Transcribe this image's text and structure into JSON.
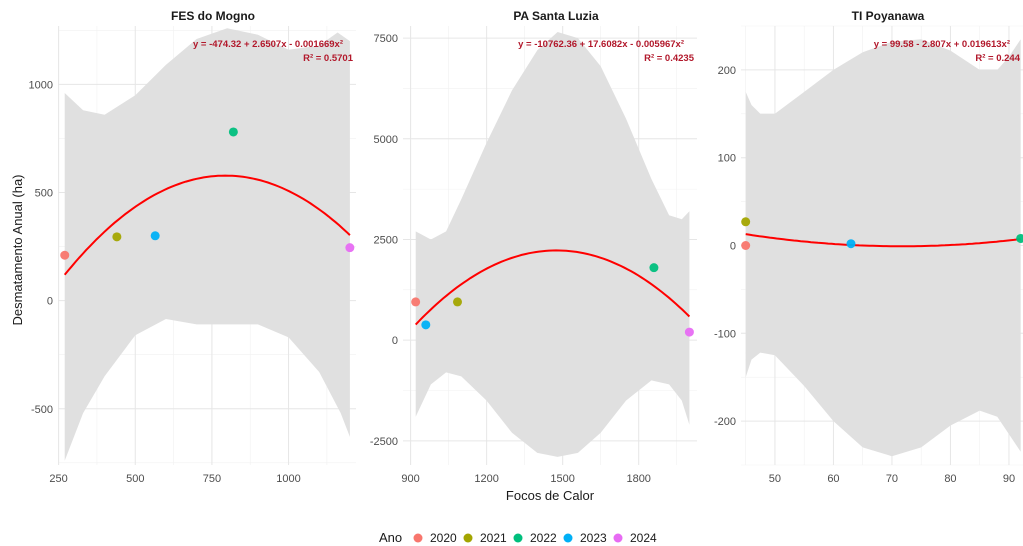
{
  "chart_data": {
    "type": "scatter",
    "xlabel": "Focos de Calor",
    "ylabel": "Desmatamento Anual (ha)",
    "legend": {
      "title": "Ano",
      "position": "bottom",
      "items": [
        {
          "label": "2020",
          "color": "#F8766D"
        },
        {
          "label": "2021",
          "color": "#A3A500"
        },
        {
          "label": "2022",
          "color": "#00BF7D"
        },
        {
          "label": "2023",
          "color": "#00B0F6"
        },
        {
          "label": "2024",
          "color": "#E76BF3"
        }
      ]
    },
    "fit_color": "#ff0000",
    "band_color": "#e0e0e0",
    "grid": true,
    "panels": [
      {
        "title": "FES do Mogno",
        "equation": "y = -474.32 + 2.6507x - 0.001669x²",
        "r2": "R² = 0.5701",
        "coef": [
          -474.32,
          2.6507,
          -0.001669
        ],
        "xlim": [
          248,
          1220
        ],
        "ylim": [
          -760,
          1270
        ],
        "xticks": [
          250,
          500,
          750,
          1000
        ],
        "xtick_labels": [
          "250",
          "500",
          "750",
          "1000"
        ],
        "yticks": [
          -500,
          0,
          500,
          1000
        ],
        "ytick_labels": [
          "-500",
          "0",
          "500",
          "1000"
        ],
        "points": [
          {
            "x": 270,
            "y": 210,
            "year": "2020"
          },
          {
            "x": 440,
            "y": 295,
            "year": "2021"
          },
          {
            "x": 820,
            "y": 780,
            "year": "2022"
          },
          {
            "x": 565,
            "y": 300,
            "year": "2023"
          },
          {
            "x": 1200,
            "y": 245,
            "year": "2024"
          }
        ],
        "band_upper": [
          [
            270,
            960
          ],
          [
            330,
            880
          ],
          [
            400,
            860
          ],
          [
            500,
            950
          ],
          [
            600,
            1090
          ],
          [
            700,
            1210
          ],
          [
            800,
            1260
          ],
          [
            900,
            1230
          ],
          [
            1000,
            1160
          ],
          [
            1100,
            1180
          ],
          [
            1160,
            1240
          ],
          [
            1200,
            1200
          ]
        ],
        "band_lower": [
          [
            270,
            -740
          ],
          [
            330,
            -520
          ],
          [
            400,
            -350
          ],
          [
            500,
            -160
          ],
          [
            600,
            -85
          ],
          [
            700,
            -110
          ],
          [
            800,
            -110
          ],
          [
            900,
            -110
          ],
          [
            1000,
            -170
          ],
          [
            1100,
            -330
          ],
          [
            1170,
            -520
          ],
          [
            1200,
            -630
          ]
        ]
      },
      {
        "title": "PA Santa Luzia",
        "equation": "y = -10762.36 + 17.6082x - 0.005967x²",
        "r2": "R² = 0.4235",
        "coef": [
          -10762.36,
          17.6082,
          -0.005967
        ],
        "xlim": [
          870,
          2030
        ],
        "ylim": [
          -3100,
          7800
        ],
        "xticks": [
          900,
          1200,
          1500,
          1800
        ],
        "xtick_labels": [
          "900",
          "1200",
          "1500",
          "1800"
        ],
        "yticks": [
          -2500,
          0,
          2500,
          5000,
          7500
        ],
        "ytick_labels": [
          "-2500",
          "0",
          "2500",
          "5000",
          "7500"
        ],
        "points": [
          {
            "x": 920,
            "y": 950,
            "year": "2020"
          },
          {
            "x": 1085,
            "y": 950,
            "year": "2021"
          },
          {
            "x": 1860,
            "y": 1800,
            "year": "2022"
          },
          {
            "x": 960,
            "y": 380,
            "year": "2023"
          },
          {
            "x": 2000,
            "y": 200,
            "year": "2024"
          }
        ],
        "band_upper": [
          [
            920,
            2700
          ],
          [
            980,
            2500
          ],
          [
            1040,
            2700
          ],
          [
            1100,
            3500
          ],
          [
            1200,
            4900
          ],
          [
            1300,
            6200
          ],
          [
            1400,
            7200
          ],
          [
            1480,
            7650
          ],
          [
            1560,
            7500
          ],
          [
            1650,
            6800
          ],
          [
            1750,
            5500
          ],
          [
            1850,
            4000
          ],
          [
            1920,
            3100
          ],
          [
            1970,
            3000
          ],
          [
            2000,
            3200
          ]
        ],
        "band_lower": [
          [
            920,
            -1900
          ],
          [
            980,
            -1100
          ],
          [
            1040,
            -800
          ],
          [
            1100,
            -900
          ],
          [
            1200,
            -1500
          ],
          [
            1300,
            -2300
          ],
          [
            1400,
            -2800
          ],
          [
            1480,
            -2900
          ],
          [
            1560,
            -2800
          ],
          [
            1650,
            -2300
          ],
          [
            1750,
            -1500
          ],
          [
            1850,
            -1000
          ],
          [
            1920,
            -1100
          ],
          [
            1970,
            -1500
          ],
          [
            2000,
            -2100
          ]
        ]
      },
      {
        "title": "TI Poyanawa",
        "equation": "y = 99.58 - 2.807x + 0.019613x²",
        "r2": "R² = 0.244",
        "coef": [
          99.58,
          -2.807,
          0.019613
        ],
        "xlim": [
          44.2,
          92.4
        ],
        "ylim": [
          -250,
          250
        ],
        "xticks": [
          50,
          60,
          70,
          80,
          90
        ],
        "xtick_labels": [
          "50",
          "60",
          "70",
          "80",
          "90"
        ],
        "yticks": [
          -200,
          -100,
          0,
          100,
          200
        ],
        "ytick_labels": [
          "-200",
          "-100",
          "0",
          "100",
          "200"
        ],
        "points": [
          {
            "x": 45,
            "y": 0,
            "year": "2020"
          },
          {
            "x": 45,
            "y": 27,
            "year": "2021"
          },
          {
            "x": 92,
            "y": 8,
            "year": "2022"
          },
          {
            "x": 63,
            "y": 2,
            "year": "2023"
          }
        ],
        "band_upper": [
          [
            45,
            175
          ],
          [
            46,
            160
          ],
          [
            47.5,
            150
          ],
          [
            50,
            150
          ],
          [
            55,
            175
          ],
          [
            60,
            200
          ],
          [
            65,
            220
          ],
          [
            70,
            232
          ],
          [
            75,
            235
          ],
          [
            80,
            222
          ],
          [
            85,
            200
          ],
          [
            88,
            200
          ],
          [
            90,
            215
          ],
          [
            92,
            235
          ]
        ],
        "band_lower": [
          [
            45,
            -150
          ],
          [
            46,
            -130
          ],
          [
            47.5,
            -122
          ],
          [
            50,
            -125
          ],
          [
            55,
            -160
          ],
          [
            60,
            -200
          ],
          [
            65,
            -230
          ],
          [
            70,
            -240
          ],
          [
            75,
            -230
          ],
          [
            80,
            -205
          ],
          [
            85,
            -188
          ],
          [
            88,
            -195
          ],
          [
            90,
            -215
          ],
          [
            92,
            -235
          ]
        ]
      }
    ]
  }
}
